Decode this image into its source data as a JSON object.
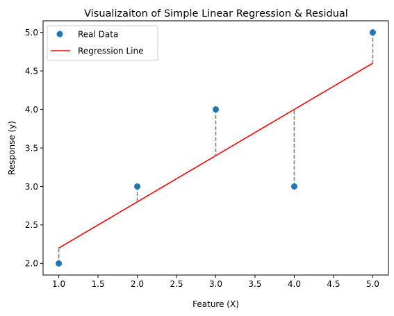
{
  "chart_data": {
    "type": "scatter",
    "title": "Visualizaiton of Simple Linear Regression & Residual",
    "xlabel": "Feature (X)",
    "ylabel": "Response (y)",
    "xlim": [
      0.8,
      5.2
    ],
    "ylim": [
      1.85,
      5.15
    ],
    "xticks": [
      1.0,
      1.5,
      2.0,
      2.5,
      3.0,
      3.5,
      4.0,
      4.5,
      5.0
    ],
    "yticks": [
      2.0,
      2.5,
      3.0,
      3.5,
      4.0,
      4.5,
      5.0
    ],
    "grid": false,
    "legend_position": "top-left",
    "series": [
      {
        "name": "Real Data",
        "kind": "scatter",
        "color": "#1f77b4",
        "x": [
          1,
          2,
          3,
          4,
          5
        ],
        "y": [
          2,
          3,
          4,
          3,
          5
        ]
      },
      {
        "name": "Regression Line",
        "kind": "line",
        "color": "#ff0000",
        "x": [
          1,
          2,
          3,
          4,
          5
        ],
        "y": [
          2.2,
          2.8,
          3.4,
          4.0,
          4.6
        ]
      }
    ],
    "residuals": {
      "style": "dashed",
      "color": "#808080"
    }
  }
}
